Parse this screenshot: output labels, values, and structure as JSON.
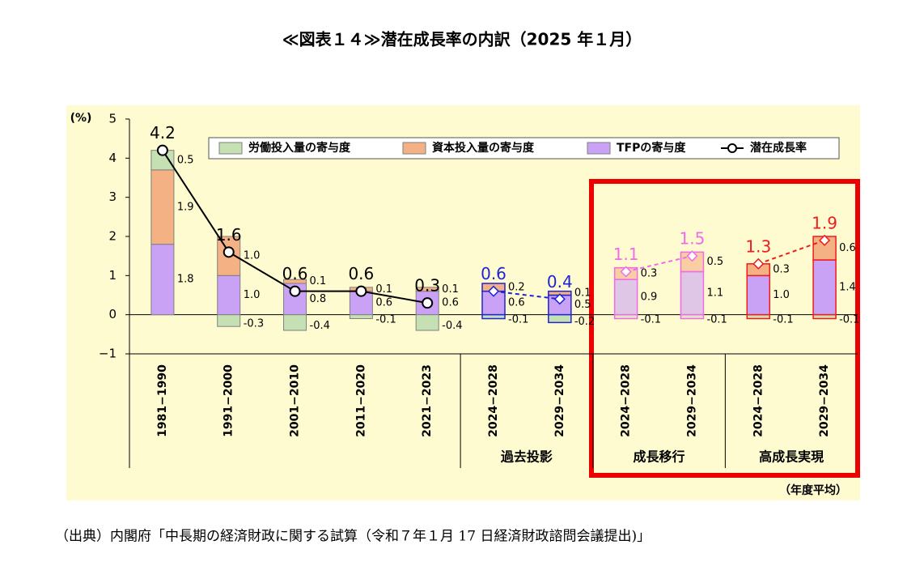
{
  "chart_data": {
    "type": "bar",
    "title": "≪図表１４≫潜在成長率の内訳（2025 年１月）",
    "y_unit": "(%)",
    "x_unit": "（年度平均）",
    "source": "（出典）内閣府「中長期の経済財政に関する試算（令和７年１月 17 日経済財政諮問会議提出)」",
    "categories": [
      "1981−1990",
      "1991−2000",
      "2001−2010",
      "2011−2020",
      "2021−2023",
      "2024−2028",
      "2029−2034",
      "2024−2028",
      "2029−2034",
      "2024−2028",
      "2029−2034"
    ],
    "ylim": [
      -1,
      5
    ],
    "yticks": [
      {
        "value": -1,
        "label": "−1"
      },
      0,
      1,
      2,
      3,
      4,
      5
    ],
    "series": [
      {
        "name": "TFPの寄与度",
        "color": "#c9a2f5",
        "values": [
          1.8,
          1.0,
          0.8,
          0.6,
          0.6,
          0.6,
          0.5,
          0.9,
          1.1,
          1.0,
          1.4
        ],
        "value_labels": [
          "1.8",
          "1.0",
          "0.8",
          "0.6",
          "0.6",
          "0.6",
          "0.5",
          "0.9",
          "1.1",
          "1.0",
          "1.4"
        ]
      },
      {
        "name": "資本投入量の寄与度",
        "color": "#f4b183",
        "values": [
          1.9,
          1.0,
          0.1,
          0.1,
          0.1,
          0.2,
          0.1,
          0.3,
          0.5,
          0.3,
          0.6
        ],
        "value_labels": [
          "1.9",
          "1.0",
          "0.1",
          "0.1",
          "0.1",
          "0.2",
          "0.1",
          "0.3",
          "0.5",
          "0.3",
          "0.6"
        ]
      },
      {
        "name": "労働投入量の寄与度",
        "color": "#c5e0b3",
        "values": [
          0.5,
          -0.3,
          -0.4,
          -0.1,
          -0.4,
          -0.1,
          -0.2,
          -0.1,
          -0.1,
          -0.1,
          -0.1
        ],
        "value_labels": [
          "0.5",
          "-0.3",
          "-0.4",
          "-0.1",
          "-0.4",
          "-0.1",
          "-0.2",
          "-0.1",
          "-0.1",
          "-0.1",
          "-0.1"
        ]
      },
      {
        "name": "潜在成長率",
        "type": "line",
        "color": "#000000",
        "values": [
          4.2,
          1.6,
          0.6,
          0.6,
          0.3,
          0.6,
          0.4,
          1.1,
          1.5,
          1.3,
          1.9
        ],
        "value_labels": [
          "4.2",
          "1.6",
          "0.6",
          "0.6",
          "0.3",
          "0.6",
          "0.4",
          "1.1",
          "1.5",
          "1.3",
          "1.9"
        ]
      }
    ],
    "segments": [
      {
        "start": 0,
        "end": 4,
        "color": "#000000",
        "edgecolor": "#7f7f7f",
        "dashed": false,
        "marker": "circle",
        "alpha": 1
      },
      {
        "start": 5,
        "end": 6,
        "color": "#1f24d6",
        "edgecolor": "#1f24d6",
        "dashed": true,
        "marker": "diamond",
        "alpha": 1,
        "label": "過去投影"
      },
      {
        "start": 7,
        "end": 8,
        "color": "#f06be8",
        "edgecolor": "#f06be8",
        "dashed": true,
        "marker": "diamond",
        "alpha": 0.6,
        "label": "成長移行"
      },
      {
        "start": 9,
        "end": 10,
        "color": "#ee1c1c",
        "edgecolor": "#ee1c1c",
        "dashed": true,
        "marker": "diamond",
        "alpha": 1,
        "label": "高成長実現"
      }
    ]
  }
}
